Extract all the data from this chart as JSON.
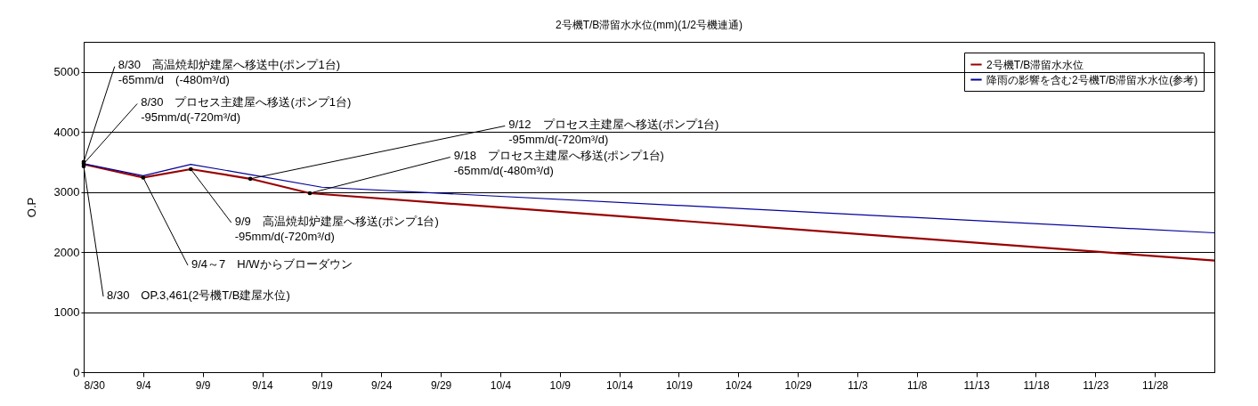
{
  "chart_data": {
    "type": "line",
    "title": "2号機T/B滞留水水位(mm)(1/2号機連通)",
    "ylabel": "O.P",
    "xlim": [
      "--08-30",
      "--12-03"
    ],
    "xticks": [
      {
        "value": "--08-30",
        "label": "8/30"
      },
      {
        "value": "--09-04",
        "label": "9/4"
      },
      {
        "value": "--09-09",
        "label": "9/9"
      },
      {
        "value": "--09-14",
        "label": "9/14"
      },
      {
        "value": "--09-19",
        "label": "9/19"
      },
      {
        "value": "--09-24",
        "label": "9/24"
      },
      {
        "value": "--09-29",
        "label": "9/29"
      },
      {
        "value": "--10-04",
        "label": "10/4"
      },
      {
        "value": "--10-09",
        "label": "10/9"
      },
      {
        "value": "--10-14",
        "label": "10/14"
      },
      {
        "value": "--10-19",
        "label": "10/19"
      },
      {
        "value": "--10-24",
        "label": "10/24"
      },
      {
        "value": "--10-29",
        "label": "10/29"
      },
      {
        "value": "--11-03",
        "label": "11/3"
      },
      {
        "value": "--11-08",
        "label": "11/8"
      },
      {
        "value": "--11-13",
        "label": "11/13"
      },
      {
        "value": "--11-18",
        "label": "11/18"
      },
      {
        "value": "--11-23",
        "label": "11/23"
      },
      {
        "value": "--11-28",
        "label": "11/28"
      }
    ],
    "ylim": [
      0,
      5500
    ],
    "yticks": [
      0,
      1000,
      2000,
      3000,
      4000,
      5000
    ],
    "grid": "y",
    "legend": "top right",
    "marker": "none",
    "line_style": "solid",
    "series": [
      {
        "name": "2号機T/B滞留水水位",
        "color": "#990000",
        "x": [
          "--08-30",
          "--09-04",
          "--09-08",
          "--09-13",
          "--09-18",
          "--12-03"
        ],
        "values": [
          3461,
          3240,
          3380,
          3220,
          2980,
          1860
        ]
      },
      {
        "name": "降雨の影響を含む2号機T/B滞留水水位(参考)",
        "color": "#000099",
        "x": [
          "--08-30",
          "--09-04",
          "--09-08",
          "--09-13",
          "--09-19",
          "--12-03"
        ],
        "values": [
          3470,
          3270,
          3460,
          3290,
          3080,
          2320
        ]
      }
    ],
    "annotations": [
      {
        "text": "8/30　高温焼却炉建屋へ移送中(ポンプ1台)\n　　　-65mm/d　(-480m³/d)",
        "x": "--08-30",
        "y": 3500
      },
      {
        "text": "8/30　プロセス主建屋へ移送(ポンプ1台)\n　　　-95mm/d(-720m³/d)",
        "x": "--08-30",
        "y": 3470
      },
      {
        "text": "9/12　プロセス主建屋へ移送(ポンプ1台)\n　　　-95mm/d(-720m³/d)",
        "x": "--09-13",
        "y": 3220
      },
      {
        "text": "9/18　プロセス主建屋へ移送(ポンプ1台)\n　　　-65mm/d(-480m³/d)",
        "x": "--09-18",
        "y": 2980
      },
      {
        "text": "9/9　高温焼却炉建屋へ移送(ポンプ1台)\n　　　-95mm/d(-720m³/d)",
        "x": "--09-08",
        "y": 3380
      },
      {
        "text": "9/4～7　H/Wからブローダウン",
        "x": "--09-04",
        "y": 3240
      },
      {
        "text": "8/30　OP.3,461(2号機T/B建屋水位)",
        "x": "--08-30",
        "y": 3430
      }
    ]
  }
}
